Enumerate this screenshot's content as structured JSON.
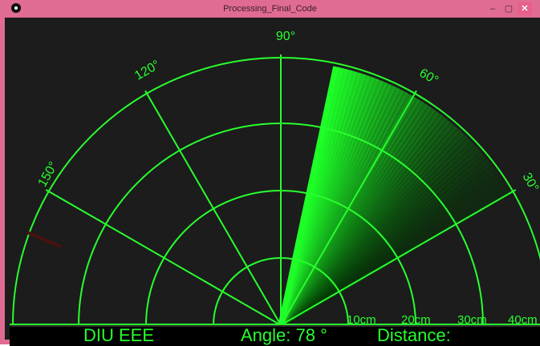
{
  "window": {
    "title": "Processing_Final_Code",
    "controls": {
      "minimize": "–",
      "maximize": "▢",
      "close": "✕"
    }
  },
  "radar": {
    "current_angle_deg": 78,
    "angle_labels": [
      "30°",
      "60°",
      "90°",
      "120°",
      "150°"
    ],
    "distance_labels": [
      "10cm",
      "20cm",
      "30cm",
      "40cm"
    ],
    "colors": {
      "green": "#28ff2e",
      "background": "#1c1c1c",
      "object": "#4a1111"
    }
  },
  "status": {
    "team": "DIU EEE",
    "angle": "Angle: 78 °",
    "distance": "Distance:"
  },
  "icons": [
    "app-icon",
    "minimize-icon",
    "maximize-icon",
    "close-icon"
  ]
}
